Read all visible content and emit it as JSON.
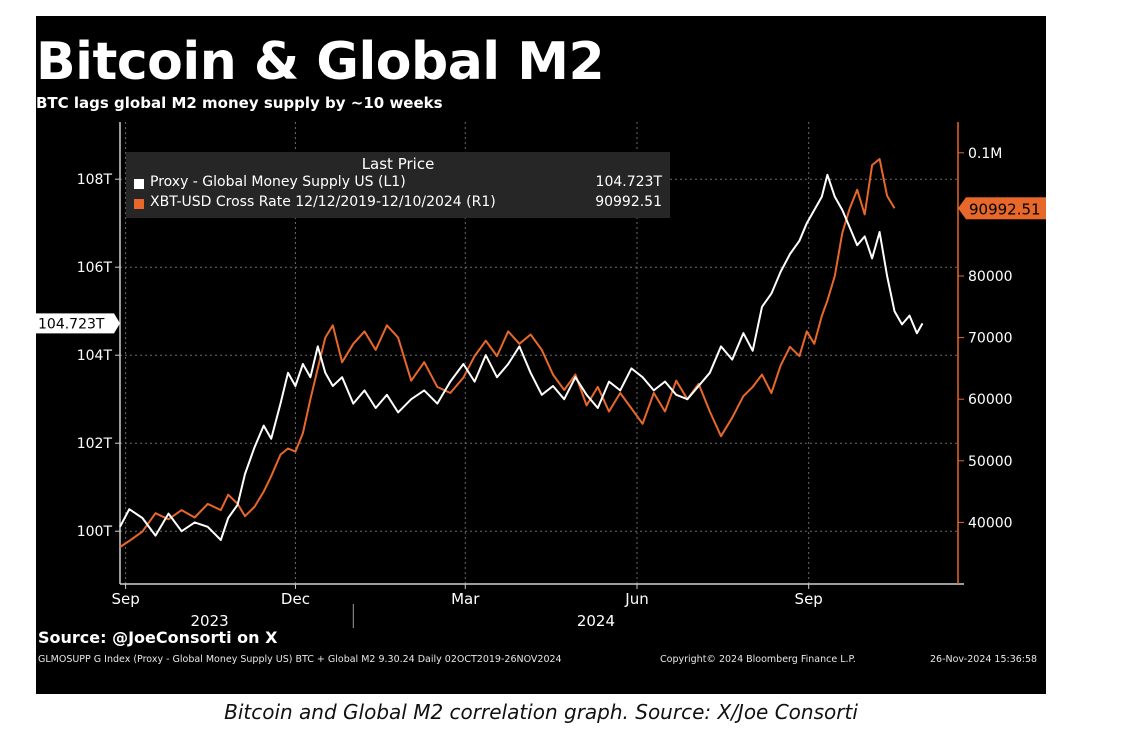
{
  "caption": "Bitcoin and Global M2 correlation graph. Source: X/Joe Consorti",
  "header": {
    "title": "Bitcoin & Global M2",
    "subtitle": "BTC lags global M2 money supply by ~10 weeks"
  },
  "legend": {
    "title": "Last Price",
    "items": [
      {
        "name": "Proxy - Global Money Supply US  (L1)",
        "value": "104.723T",
        "color": "#ffffff"
      },
      {
        "name": "XBT-USD Cross Rate 12/12/2019-12/10/2024  (R1)",
        "value": "90992.51",
        "color": "#e8672a"
      }
    ]
  },
  "footer": {
    "source": "Source: @JoeConsorti on X",
    "index_text": "GLMOSUPP G Index (Proxy - Global Money Supply US) BTC + Global M2 9.30.24  Daily 02OCT2019-26NOV2024",
    "copyright": "Copyright© 2024 Bloomberg Finance L.P.",
    "timestamp": "26-Nov-2024 15:36:58"
  },
  "chart_data": {
    "type": "line",
    "title": "Bitcoin & Global M2",
    "subtitle": "BTC lags global M2 money supply by ~10 weeks",
    "x_axis": {
      "range": [
        "2023-08-29",
        "2024-11-20"
      ],
      "month_ticks": [
        {
          "date": "2023-09-01",
          "label": "Sep"
        },
        {
          "date": "2023-12-01",
          "label": "Dec"
        },
        {
          "date": "2024-03-01",
          "label": "Mar"
        },
        {
          "date": "2024-06-01",
          "label": "Jun"
        },
        {
          "date": "2024-09-01",
          "label": "Sep"
        }
      ],
      "year_labels": [
        {
          "date": "2023-10-16",
          "label": "2023"
        },
        {
          "date": "2024-05-10",
          "label": "2024"
        }
      ],
      "year_divider": "2024-01-01"
    },
    "left_axis": {
      "ylim": [
        98.8,
        109.3
      ],
      "ticks": [
        {
          "value": 100,
          "label": "100T"
        },
        {
          "value": 102,
          "label": "102T"
        },
        {
          "value": 104,
          "label": "104T"
        },
        {
          "value": 106,
          "label": "106T"
        },
        {
          "value": 108,
          "label": "108T"
        }
      ],
      "last_value_tag": {
        "value": 104.723,
        "label": "104.723T",
        "color": "#ffffff"
      }
    },
    "right_axis": {
      "ylim": [
        30000,
        105000
      ],
      "ticks": [
        {
          "value": 40000,
          "label": "40000"
        },
        {
          "value": 50000,
          "label": "50000"
        },
        {
          "value": 60000,
          "label": "60000"
        },
        {
          "value": 70000,
          "label": "70000"
        },
        {
          "value": 80000,
          "label": "80000"
        },
        {
          "value": 100000,
          "label": "0.1M"
        }
      ],
      "last_value_tag": {
        "value": 90992.51,
        "label": "90992.51",
        "color": "#e8672a"
      }
    },
    "grid": true,
    "legend_position": "top-left",
    "series": [
      {
        "name": "Proxy - Global Money Supply US (L1)",
        "axis": "left",
        "color": "#ffffff",
        "points": [
          [
            "2023-08-29",
            100.1
          ],
          [
            "2023-09-03",
            100.5
          ],
          [
            "2023-09-10",
            100.3
          ],
          [
            "2023-09-17",
            99.9
          ],
          [
            "2023-09-24",
            100.4
          ],
          [
            "2023-10-01",
            100.0
          ],
          [
            "2023-10-08",
            100.2
          ],
          [
            "2023-10-15",
            100.1
          ],
          [
            "2023-10-22",
            99.8
          ],
          [
            "2023-10-26",
            100.3
          ],
          [
            "2023-10-31",
            100.6
          ],
          [
            "2023-11-04",
            101.3
          ],
          [
            "2023-11-09",
            101.9
          ],
          [
            "2023-11-14",
            102.4
          ],
          [
            "2023-11-18",
            102.1
          ],
          [
            "2023-11-23",
            102.9
          ],
          [
            "2023-11-27",
            103.6
          ],
          [
            "2023-12-01",
            103.3
          ],
          [
            "2023-12-05",
            103.8
          ],
          [
            "2023-12-09",
            103.5
          ],
          [
            "2023-12-13",
            104.2
          ],
          [
            "2023-12-17",
            103.6
          ],
          [
            "2023-12-21",
            103.3
          ],
          [
            "2023-12-26",
            103.5
          ],
          [
            "2024-01-01",
            102.9
          ],
          [
            "2024-01-07",
            103.2
          ],
          [
            "2024-01-13",
            102.8
          ],
          [
            "2024-01-19",
            103.1
          ],
          [
            "2024-01-25",
            102.7
          ],
          [
            "2024-02-01",
            103.0
          ],
          [
            "2024-02-08",
            103.2
          ],
          [
            "2024-02-15",
            102.9
          ],
          [
            "2024-02-22",
            103.4
          ],
          [
            "2024-02-29",
            103.8
          ],
          [
            "2024-03-06",
            103.4
          ],
          [
            "2024-03-12",
            104.0
          ],
          [
            "2024-03-18",
            103.5
          ],
          [
            "2024-03-24",
            103.8
          ],
          [
            "2024-03-30",
            104.2
          ],
          [
            "2024-04-05",
            103.6
          ],
          [
            "2024-04-11",
            103.1
          ],
          [
            "2024-04-17",
            103.3
          ],
          [
            "2024-04-23",
            103.0
          ],
          [
            "2024-04-29",
            103.5
          ],
          [
            "2024-05-05",
            103.1
          ],
          [
            "2024-05-11",
            102.8
          ],
          [
            "2024-05-17",
            103.4
          ],
          [
            "2024-05-23",
            103.2
          ],
          [
            "2024-05-29",
            103.7
          ],
          [
            "2024-06-04",
            103.5
          ],
          [
            "2024-06-10",
            103.2
          ],
          [
            "2024-06-16",
            103.4
          ],
          [
            "2024-06-22",
            103.1
          ],
          [
            "2024-06-28",
            103.0
          ],
          [
            "2024-07-04",
            103.3
          ],
          [
            "2024-07-10",
            103.6
          ],
          [
            "2024-07-16",
            104.2
          ],
          [
            "2024-07-22",
            103.9
          ],
          [
            "2024-07-28",
            104.5
          ],
          [
            "2024-08-02",
            104.1
          ],
          [
            "2024-08-07",
            105.1
          ],
          [
            "2024-08-12",
            105.4
          ],
          [
            "2024-08-17",
            105.9
          ],
          [
            "2024-08-22",
            106.3
          ],
          [
            "2024-08-27",
            106.6
          ],
          [
            "2024-08-31",
            107.0
          ],
          [
            "2024-09-04",
            107.3
          ],
          [
            "2024-09-08",
            107.6
          ],
          [
            "2024-09-11",
            108.1
          ],
          [
            "2024-09-15",
            107.6
          ],
          [
            "2024-09-19",
            107.3
          ],
          [
            "2024-09-23",
            106.9
          ],
          [
            "2024-09-27",
            106.5
          ],
          [
            "2024-10-01",
            106.7
          ],
          [
            "2024-10-05",
            106.2
          ],
          [
            "2024-10-09",
            106.8
          ],
          [
            "2024-10-13",
            105.8
          ],
          [
            "2024-10-17",
            105.0
          ],
          [
            "2024-10-21",
            104.7
          ],
          [
            "2024-10-25",
            104.9
          ],
          [
            "2024-10-29",
            104.5
          ],
          [
            "2024-11-01",
            104.723
          ]
        ]
      },
      {
        "name": "XBT-USD Cross Rate 12/12/2019-12/10/2024 (R1)",
        "axis": "right",
        "color": "#e8672a",
        "points": [
          [
            "2023-08-29",
            36000
          ],
          [
            "2023-09-03",
            37000
          ],
          [
            "2023-09-10",
            38500
          ],
          [
            "2023-09-17",
            41500
          ],
          [
            "2023-09-24",
            40500
          ],
          [
            "2023-10-01",
            42000
          ],
          [
            "2023-10-08",
            40800
          ],
          [
            "2023-10-15",
            43000
          ],
          [
            "2023-10-22",
            42000
          ],
          [
            "2023-10-26",
            44500
          ],
          [
            "2023-10-31",
            43000
          ],
          [
            "2023-11-04",
            41000
          ],
          [
            "2023-11-09",
            42500
          ],
          [
            "2023-11-14",
            45000
          ],
          [
            "2023-11-18",
            47500
          ],
          [
            "2023-11-23",
            51000
          ],
          [
            "2023-11-27",
            52000
          ],
          [
            "2023-12-01",
            51500
          ],
          [
            "2023-12-05",
            54500
          ],
          [
            "2023-12-09",
            60000
          ],
          [
            "2023-12-13",
            65000
          ],
          [
            "2023-12-17",
            70000
          ],
          [
            "2023-12-21",
            72000
          ],
          [
            "2023-12-26",
            66000
          ],
          [
            "2024-01-01",
            69000
          ],
          [
            "2024-01-07",
            71000
          ],
          [
            "2024-01-13",
            68000
          ],
          [
            "2024-01-19",
            72000
          ],
          [
            "2024-01-25",
            70000
          ],
          [
            "2024-02-01",
            63000
          ],
          [
            "2024-02-08",
            66000
          ],
          [
            "2024-02-15",
            62000
          ],
          [
            "2024-02-22",
            61000
          ],
          [
            "2024-02-29",
            63500
          ],
          [
            "2024-03-06",
            67000
          ],
          [
            "2024-03-12",
            69500
          ],
          [
            "2024-03-18",
            67000
          ],
          [
            "2024-03-24",
            71000
          ],
          [
            "2024-03-30",
            69000
          ],
          [
            "2024-04-05",
            70500
          ],
          [
            "2024-04-11",
            68000
          ],
          [
            "2024-04-17",
            64000
          ],
          [
            "2024-04-23",
            61500
          ],
          [
            "2024-04-29",
            64000
          ],
          [
            "2024-05-05",
            59000
          ],
          [
            "2024-05-11",
            62000
          ],
          [
            "2024-05-17",
            58000
          ],
          [
            "2024-05-23",
            61000
          ],
          [
            "2024-05-29",
            58500
          ],
          [
            "2024-06-04",
            56000
          ],
          [
            "2024-06-10",
            61000
          ],
          [
            "2024-06-16",
            58000
          ],
          [
            "2024-06-22",
            63000
          ],
          [
            "2024-06-28",
            60000
          ],
          [
            "2024-07-04",
            62500
          ],
          [
            "2024-07-10",
            58000
          ],
          [
            "2024-07-16",
            54000
          ],
          [
            "2024-07-22",
            57000
          ],
          [
            "2024-07-28",
            60500
          ],
          [
            "2024-08-02",
            62000
          ],
          [
            "2024-08-07",
            64000
          ],
          [
            "2024-08-12",
            61000
          ],
          [
            "2024-08-17",
            65500
          ],
          [
            "2024-08-22",
            68500
          ],
          [
            "2024-08-27",
            67000
          ],
          [
            "2024-08-31",
            71000
          ],
          [
            "2024-09-04",
            69000
          ],
          [
            "2024-09-08",
            73500
          ],
          [
            "2024-09-11",
            76000
          ],
          [
            "2024-09-15",
            80000
          ],
          [
            "2024-09-19",
            87000
          ],
          [
            "2024-09-23",
            91000
          ],
          [
            "2024-09-27",
            94000
          ],
          [
            "2024-10-01",
            90000
          ],
          [
            "2024-10-05",
            98000
          ],
          [
            "2024-10-09",
            99000
          ],
          [
            "2024-10-13",
            93000
          ],
          [
            "2024-10-17",
            90992.51
          ]
        ]
      }
    ]
  }
}
